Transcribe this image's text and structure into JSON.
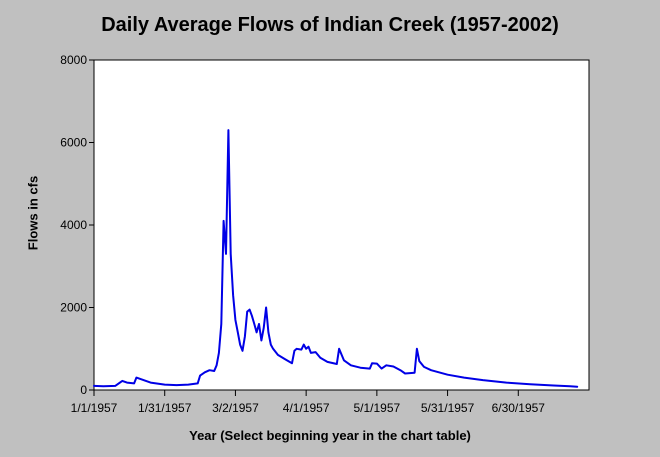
{
  "chart_data": {
    "type": "line",
    "title": "Daily Average Flows of Indian Creek (1957-2002)",
    "xlabel": "Year (Select beginning year in the chart table)",
    "ylabel": "Flows in cfs",
    "ylim": [
      0,
      8000
    ],
    "xlim": [
      "1957-01-01",
      "1957-07-30"
    ],
    "yticks": [
      0,
      2000,
      4000,
      6000,
      8000
    ],
    "xticks": [
      {
        "label": "1/1/1957",
        "date": "1957-01-01"
      },
      {
        "label": "1/31/1957",
        "date": "1957-01-31"
      },
      {
        "label": "3/2/1957",
        "date": "1957-03-02"
      },
      {
        "label": "4/1/1957",
        "date": "1957-04-01"
      },
      {
        "label": "5/1/1957",
        "date": "1957-05-01"
      },
      {
        "label": "5/31/1957",
        "date": "1957-05-31"
      },
      {
        "label": "6/30/1957",
        "date": "1957-06-30"
      }
    ],
    "grid": false,
    "line_color": "#0000e6",
    "series": [
      {
        "x": [
          "1957-01-01",
          "1957-01-05",
          "1957-01-10",
          "1957-01-13",
          "1957-01-15",
          "1957-01-18",
          "1957-01-19",
          "1957-01-22",
          "1957-01-25",
          "1957-01-31",
          "1957-02-05",
          "1957-02-10",
          "1957-02-14",
          "1957-02-15",
          "1957-02-17",
          "1957-02-19",
          "1957-02-21",
          "1957-02-22",
          "1957-02-23",
          "1957-02-24",
          "1957-02-25",
          "1957-02-26",
          "1957-02-27",
          "1957-02-28",
          "1957-03-01",
          "1957-03-02",
          "1957-03-03",
          "1957-03-04",
          "1957-03-05",
          "1957-03-06",
          "1957-03-07",
          "1957-03-08",
          "1957-03-09",
          "1957-03-10",
          "1957-03-11",
          "1957-03-12",
          "1957-03-13",
          "1957-03-14",
          "1957-03-15",
          "1957-03-16",
          "1957-03-17",
          "1957-03-18",
          "1957-03-20",
          "1957-03-23",
          "1957-03-26",
          "1957-03-27",
          "1957-03-28",
          "1957-03-30",
          "1957-03-31",
          "1957-04-01",
          "1957-04-02",
          "1957-04-03",
          "1957-04-05",
          "1957-04-07",
          "1957-04-10",
          "1957-04-14",
          "1957-04-15",
          "1957-04-17",
          "1957-04-20",
          "1957-04-24",
          "1957-04-28",
          "1957-04-29",
          "1957-05-01",
          "1957-05-03",
          "1957-05-05",
          "1957-05-08",
          "1957-05-11",
          "1957-05-13",
          "1957-05-17",
          "1957-05-18",
          "1957-05-19",
          "1957-05-21",
          "1957-05-24",
          "1957-05-31",
          "1957-06-07",
          "1957-06-15",
          "1957-06-25",
          "1957-07-05",
          "1957-07-15",
          "1957-07-22",
          "1957-07-25"
        ],
        "values": [
          100,
          90,
          100,
          220,
          180,
          160,
          300,
          240,
          180,
          130,
          120,
          130,
          160,
          350,
          430,
          480,
          460,
          600,
          900,
          1600,
          4100,
          3300,
          6300,
          3300,
          2300,
          1700,
          1400,
          1100,
          950,
          1300,
          1900,
          1950,
          1800,
          1600,
          1400,
          1600,
          1200,
          1500,
          2000,
          1400,
          1100,
          1000,
          850,
          750,
          650,
          950,
          1000,
          980,
          1100,
          1000,
          1050,
          900,
          920,
          780,
          680,
          630,
          1000,
          720,
          600,
          540,
          520,
          650,
          640,
          520,
          600,
          570,
          480,
          400,
          420,
          1000,
          700,
          560,
          480,
          370,
          300,
          240,
          180,
          140,
          110,
          90,
          80
        ]
      }
    ]
  }
}
